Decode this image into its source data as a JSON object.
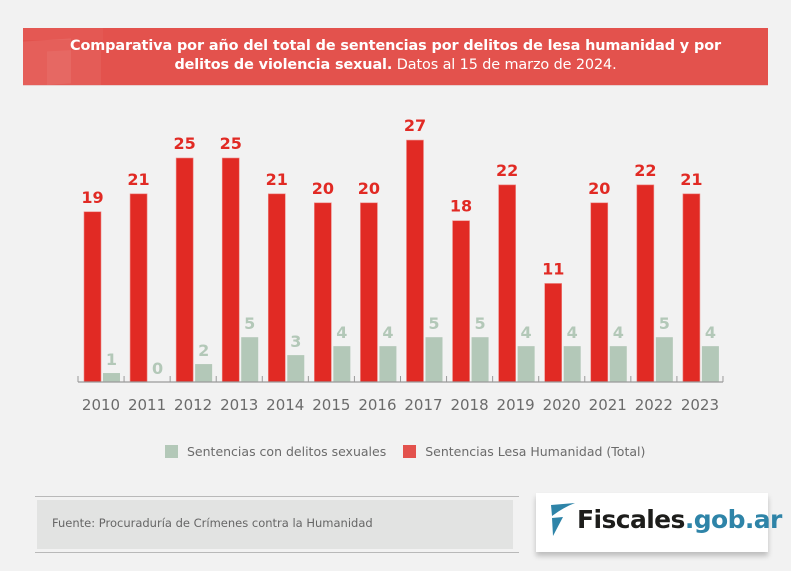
{
  "header": {
    "title_bold_line1": "Comparativa por año del total de sentencias por delitos de lesa humanidad y por",
    "title_bold_line2": "delitos de violencia sexual.",
    "title_light": "Datos al 15 de marzo de 2024."
  },
  "colors": {
    "banner": "#e3524d",
    "lesa_humanidad": "#e12a24",
    "delitos_sexuales": "#b3c8b8",
    "legend_lesa_swatch": "#e3524d",
    "logo_accent": "#2e84a8"
  },
  "chart_data": {
    "type": "bar",
    "title": "Comparativa por año del total de sentencias por delitos de lesa humanidad y por delitos de violencia sexual. Datos al 15 de marzo de 2024.",
    "xlabel": "",
    "ylabel": "",
    "categories": [
      "2010",
      "2011",
      "2012",
      "2013",
      "2014",
      "2015",
      "2016",
      "2017",
      "2018",
      "2019",
      "2020",
      "2021",
      "2022",
      "2023"
    ],
    "series": [
      {
        "name": "Sentencias Lesa Humanidad (Total)",
        "values": [
          19,
          21,
          25,
          25,
          21,
          20,
          20,
          27,
          18,
          22,
          11,
          20,
          22,
          21
        ]
      },
      {
        "name": "Sentencias con delitos sexuales",
        "values": [
          1,
          0,
          2,
          5,
          3,
          4,
          4,
          5,
          5,
          4,
          4,
          4,
          5,
          4
        ]
      }
    ],
    "ylim": [
      0,
      27
    ],
    "grid": false,
    "data_labels": true,
    "legend_position": "bottom"
  },
  "legend": {
    "items": [
      {
        "label": "Sentencias con delitos sexuales",
        "color": "#b3c8b8"
      },
      {
        "label": "Sentencias Lesa Humanidad (Total)",
        "color": "#e3524d"
      }
    ]
  },
  "footer": {
    "source": "Fuente: Procuraduría de Crímenes contra la Humanidad",
    "logo_main": "Fiscales",
    "logo_domain": ".gob.ar",
    "logo_icon": "fiscales-flag-icon"
  }
}
